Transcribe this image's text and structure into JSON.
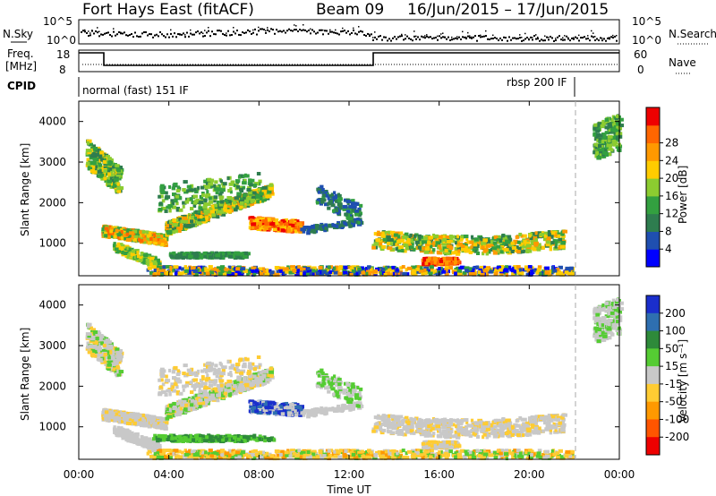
{
  "header": {
    "title": "Fort Hays East (fitACF)",
    "beam": "Beam 09",
    "date_range": "16/Jun/2015 – 17/Jun/2015"
  },
  "top_panels": {
    "nsky_label": "N.Sky",
    "nsky_ticks": [
      "10^5",
      "10^0"
    ],
    "nsearch_label": "N.Search",
    "nsearch_ticks": [
      "10^5",
      "10^0"
    ],
    "freq_label_1": "Freq.",
    "freq_label_2": "[MHz]",
    "freq_ticks": [
      "18",
      "8"
    ],
    "nave_label": "Nave",
    "nave_ticks": [
      "60",
      "0"
    ],
    "cpid_label": "CPID",
    "cpid_mode_1": "normal (fast) 151 IF",
    "cpid_mode_2": "rbsp 200 IF"
  },
  "chart_data": [
    {
      "type": "heatmap",
      "name": "power",
      "ylabel": "Slant Range [km]",
      "y_ticks": [
        "1000",
        "2000",
        "3000",
        "4000"
      ],
      "ylim": [
        200,
        4500
      ],
      "xlim_hours": [
        0,
        24
      ],
      "colorbar_label": "Power [dB]",
      "colorbar_ticks": [
        "4",
        "8",
        "12",
        "16",
        "20",
        "24",
        "28"
      ],
      "colorbar_colors": [
        "#0000ff",
        "#1f4fb0",
        "#2e7d4f",
        "#33a040",
        "#8ccc30",
        "#ffcc00",
        "#ff9900",
        "#ff6600",
        "#ee0000"
      ]
    },
    {
      "type": "heatmap",
      "name": "velocity",
      "ylabel": "Slant Range [km]",
      "y_ticks": [
        "1000",
        "2000",
        "3000",
        "4000"
      ],
      "ylim": [
        200,
        4500
      ],
      "xlim_hours": [
        0,
        24
      ],
      "colorbar_label": "Velocity [m s⁻¹]",
      "colorbar_ticks": [
        "200",
        "100",
        "50",
        "15",
        "-15",
        "-50",
        "-100",
        "-200"
      ],
      "colorbar_colors": [
        "#1a2ecc",
        "#2e6fb0",
        "#2e8a3a",
        "#55cc33",
        "#c8c8c8",
        "#ffcc33",
        "#ff9900",
        "#ff5500",
        "#ee0000"
      ]
    }
  ],
  "x_axis": {
    "ticks": [
      "00:00",
      "04:00",
      "08:00",
      "12:00",
      "16:00",
      "20:00",
      "00:00"
    ],
    "label": "Time UT"
  }
}
